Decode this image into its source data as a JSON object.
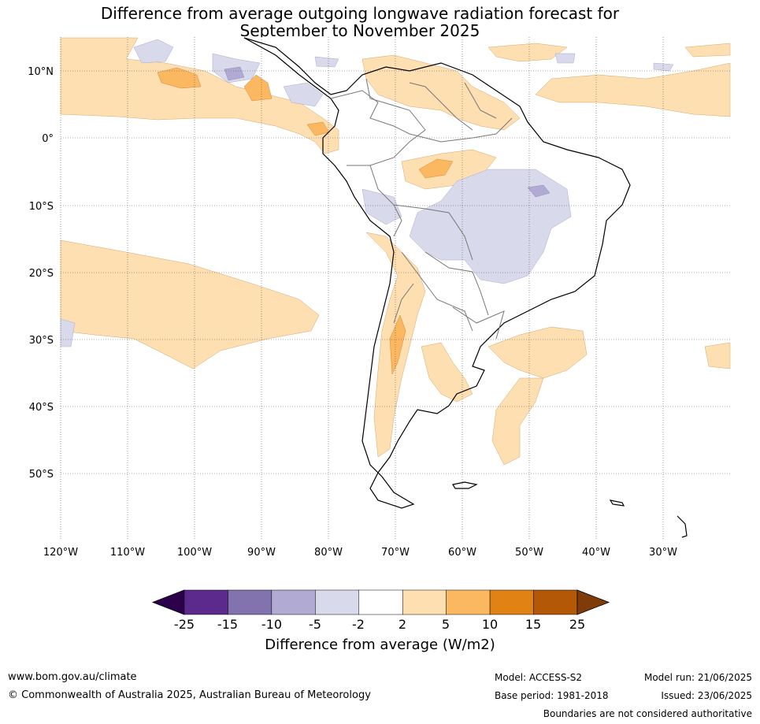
{
  "title": {
    "line1": "Difference from average outgoing longwave radiation forecast for",
    "line2": "September to November 2025"
  },
  "axes": {
    "lat_labels": [
      "10°N",
      "0°",
      "10°S",
      "20°S",
      "30°S",
      "40°S",
      "50°S"
    ],
    "lon_labels": [
      "120°W",
      "110°W",
      "100°W",
      "90°W",
      "80°W",
      "70°W",
      "60°W",
      "50°W",
      "40°W",
      "30°W"
    ],
    "lat_range": [
      -60,
      15
    ],
    "lon_range": [
      -120,
      -20
    ]
  },
  "colorbar": {
    "ticks": [
      "-25",
      "-15",
      "-10",
      "-5",
      "-2",
      "2",
      "5",
      "10",
      "15",
      "25"
    ],
    "colors": [
      "#2d004b",
      "#5c2a8c",
      "#8273ae",
      "#b1aad2",
      "#d8d9ea",
      "#ffffff",
      "#fddfb1",
      "#fcb761",
      "#e08214",
      "#b35806",
      "#7f3b08"
    ],
    "title": "Difference from average (W/m2)"
  },
  "legend_colors": {
    "light_orange": "#fddfb1",
    "mid_orange": "#fcb761",
    "light_purple": "#d8d9ea",
    "mid_purple": "#b1aad2"
  },
  "footer": {
    "url": "www.bom.gov.au/climate",
    "copyright": "© Commonwealth of Australia 2025, Australian Bureau of Meteorology",
    "model": "Model: ACCESS-S2",
    "base_period": "Base period: 1981-2018",
    "model_run": "Model run: 21/06/2025",
    "issued": "Issued: 23/06/2025",
    "disclaimer": "Boundaries are not considered authoritative"
  }
}
